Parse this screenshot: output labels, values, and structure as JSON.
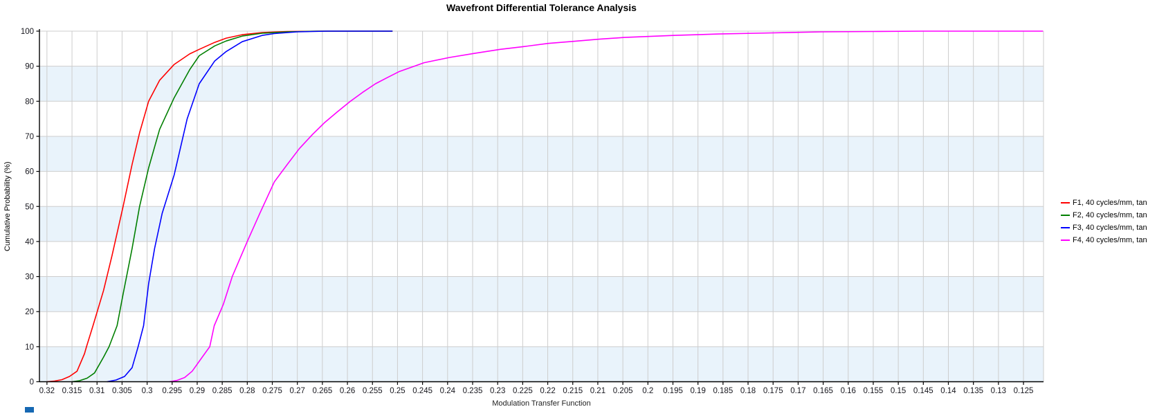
{
  "chart_data": {
    "type": "line",
    "title": "Wavefront Differential Tolerance Analysis",
    "xlabel": "Modulation Transfer Function",
    "ylabel": "Cumulative Probability (%)",
    "x_axis": {
      "reversed": true,
      "left_value": 0.3215,
      "right_value": 0.121,
      "tick_start": 0.32,
      "tick_step": 0.005,
      "tick_count": 40
    },
    "ylim": [
      0,
      100
    ],
    "y_tick_step": 10,
    "grid": true,
    "shaded_bands": [
      [
        0,
        10
      ],
      [
        20,
        30
      ],
      [
        40,
        50
      ],
      [
        60,
        70
      ],
      [
        80,
        90
      ]
    ],
    "legend_position": "right-outside",
    "colors": {
      "band_fill": "#e9f3fb",
      "grid_line": "#cdcdcd",
      "axis_line": "#000000",
      "tick_label": "#16161d",
      "title": "#000000"
    },
    "series": [
      {
        "name": "F1, 40 cycles/mm, tan",
        "color": "#ff0000",
        "points": [
          [
            0.32,
            0
          ],
          [
            0.3185,
            0.2
          ],
          [
            0.317,
            0.6
          ],
          [
            0.3155,
            1.5
          ],
          [
            0.314,
            3
          ],
          [
            0.3125,
            8
          ],
          [
            0.3121,
            10
          ],
          [
            0.3108,
            16
          ],
          [
            0.3087,
            26
          ],
          [
            0.307,
            36
          ],
          [
            0.3048,
            50
          ],
          [
            0.303,
            62
          ],
          [
            0.3015,
            71
          ],
          [
            0.2997,
            80
          ],
          [
            0.2975,
            86
          ],
          [
            0.2946,
            90.5
          ],
          [
            0.2915,
            93.5
          ],
          [
            0.2896,
            94.8
          ],
          [
            0.2865,
            96.8
          ],
          [
            0.2842,
            98
          ],
          [
            0.281,
            99
          ],
          [
            0.277,
            99.6
          ],
          [
            0.272,
            99.9
          ],
          [
            0.265,
            100
          ],
          [
            0.251,
            100
          ]
        ]
      },
      {
        "name": "F2, 40 cycles/mm, tan",
        "color": "#007f00",
        "points": [
          [
            0.315,
            0
          ],
          [
            0.3135,
            0.3
          ],
          [
            0.312,
            1
          ],
          [
            0.3105,
            2.5
          ],
          [
            0.3087,
            7
          ],
          [
            0.3076,
            10
          ],
          [
            0.306,
            16
          ],
          [
            0.3048,
            25
          ],
          [
            0.303,
            38
          ],
          [
            0.3015,
            50
          ],
          [
            0.2997,
            61
          ],
          [
            0.2975,
            72
          ],
          [
            0.2946,
            81
          ],
          [
            0.2915,
            89
          ],
          [
            0.2896,
            93
          ],
          [
            0.2865,
            95.8
          ],
          [
            0.2842,
            97.2
          ],
          [
            0.281,
            98.6
          ],
          [
            0.277,
            99.4
          ],
          [
            0.272,
            99.8
          ],
          [
            0.266,
            100
          ],
          [
            0.251,
            100
          ]
        ]
      },
      {
        "name": "F3, 40 cycles/mm, tan",
        "color": "#0000ff",
        "points": [
          [
            0.308,
            0
          ],
          [
            0.3062,
            0.5
          ],
          [
            0.3045,
            1.5
          ],
          [
            0.303,
            4
          ],
          [
            0.3018,
            10
          ],
          [
            0.3007,
            16
          ],
          [
            0.2997,
            28
          ],
          [
            0.2985,
            38
          ],
          [
            0.297,
            48
          ],
          [
            0.2946,
            59
          ],
          [
            0.292,
            75
          ],
          [
            0.2896,
            85
          ],
          [
            0.2865,
            91.5
          ],
          [
            0.2842,
            94.2
          ],
          [
            0.281,
            97
          ],
          [
            0.277,
            98.8
          ],
          [
            0.2746,
            99.3
          ],
          [
            0.27,
            99.8
          ],
          [
            0.264,
            100
          ],
          [
            0.251,
            100
          ]
        ]
      },
      {
        "name": "F4, 40 cycles/mm, tan",
        "color": "#ff00ff",
        "points": [
          [
            0.2955,
            0
          ],
          [
            0.294,
            0.4
          ],
          [
            0.2925,
            1.2
          ],
          [
            0.291,
            3
          ],
          [
            0.289,
            7
          ],
          [
            0.2875,
            10
          ],
          [
            0.2866,
            16
          ],
          [
            0.2848,
            22
          ],
          [
            0.283,
            30
          ],
          [
            0.28,
            40
          ],
          [
            0.2775,
            48
          ],
          [
            0.2746,
            57
          ],
          [
            0.272,
            62
          ],
          [
            0.2696,
            66.5
          ],
          [
            0.267,
            70.5
          ],
          [
            0.2645,
            74
          ],
          [
            0.262,
            77
          ],
          [
            0.2594,
            80
          ],
          [
            0.257,
            82.5
          ],
          [
            0.2544,
            85
          ],
          [
            0.252,
            86.8
          ],
          [
            0.2496,
            88.5
          ],
          [
            0.2447,
            91
          ],
          [
            0.2396,
            92.5
          ],
          [
            0.2345,
            93.7
          ],
          [
            0.2295,
            94.8
          ],
          [
            0.2248,
            95.6
          ],
          [
            0.2199,
            96.5
          ],
          [
            0.2148,
            97.1
          ],
          [
            0.2097,
            97.7
          ],
          [
            0.2047,
            98.2
          ],
          [
            0.1996,
            98.5
          ],
          [
            0.1945,
            98.8
          ],
          [
            0.1858,
            99.2
          ],
          [
            0.175,
            99.5
          ],
          [
            0.165,
            99.8
          ],
          [
            0.155,
            99.9
          ],
          [
            0.145,
            100
          ],
          [
            0.1211,
            100
          ]
        ]
      }
    ]
  },
  "artifacts": {
    "bottom_left_square_color": "#1668b3"
  }
}
